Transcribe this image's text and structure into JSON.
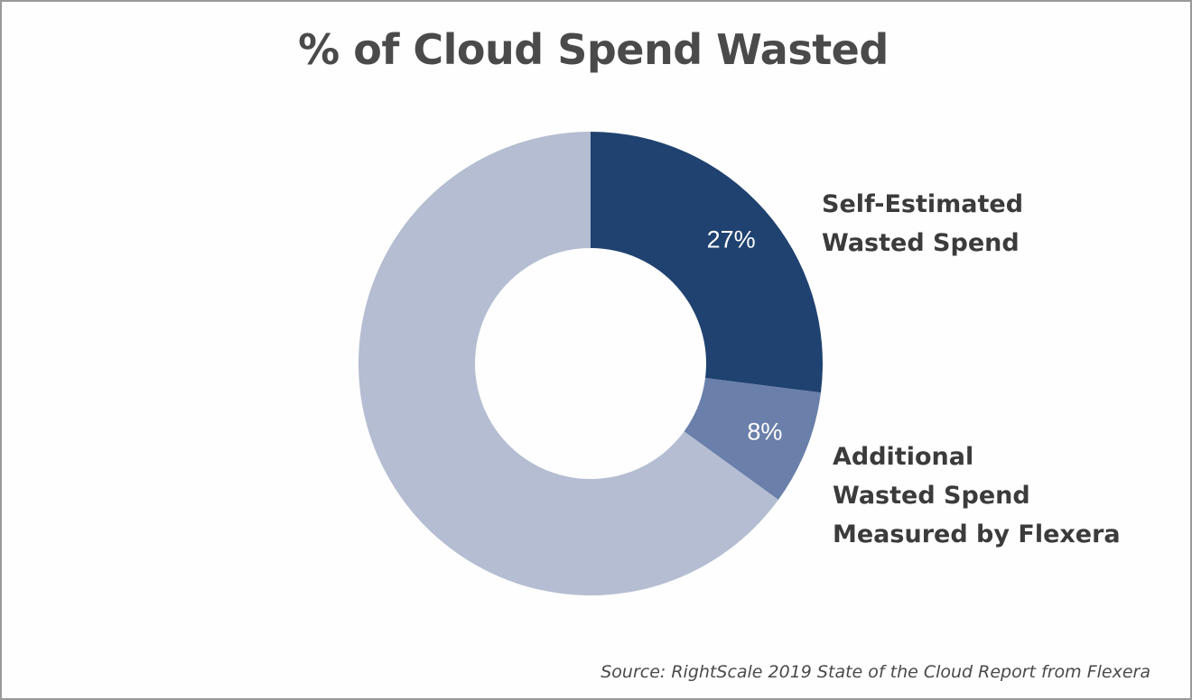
{
  "chart_data": {
    "type": "pie",
    "title": "% of Cloud Spend Wasted",
    "slices": [
      {
        "label_lines": [
          "Self-Estimated",
          "Wasted Spend"
        ],
        "value": 27,
        "value_label": "27%",
        "color": "#1f4270"
      },
      {
        "label_lines": [
          "Additional",
          "Wasted Spend",
          "Measured by Flexera"
        ],
        "value": 8,
        "value_label": "8%",
        "color": "#6a7faa"
      },
      {
        "label_lines": [],
        "value": 65,
        "value_label": "",
        "color": "#b4bdd1"
      }
    ],
    "donut": true,
    "start": "top",
    "direction": "clockwise",
    "source": "Source: RightScale 2019 State of the Cloud Report from Flexera"
  }
}
